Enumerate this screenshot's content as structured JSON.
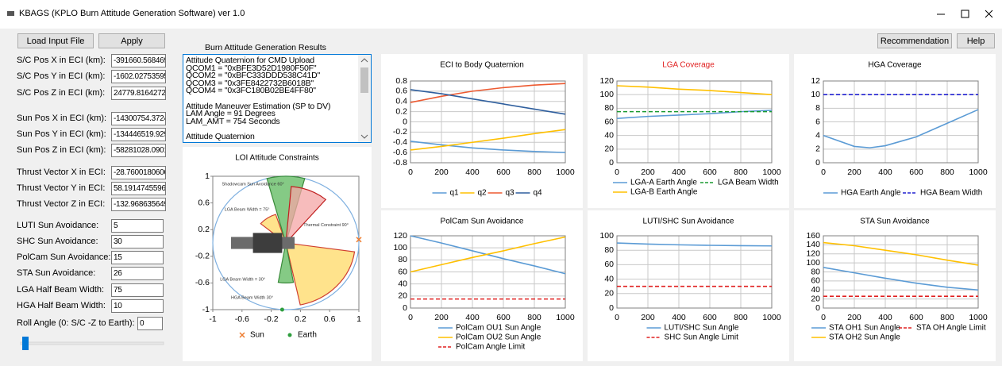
{
  "window_title": "KBAGS (KPLO Burn Attitude Generation Software) ver 1.0",
  "buttons": [
    "Load Input File",
    "Apply",
    "Recommendation",
    "Help"
  ],
  "fields": [
    {
      "label": "S/C Pos X in ECI (km):",
      "value": "-391660.568469"
    },
    {
      "label": "S/C Pos Y in ECI (km):",
      "value": "-1602.02753595"
    },
    {
      "label": "S/C Pos Z in ECI (km):",
      "value": "24779.81642721"
    },
    {
      "label": "Sun Pos X in ECI (km):",
      "value": "-14300754.3724"
    },
    {
      "label": "Sun Pos Y in ECI (km):",
      "value": "-134446519.929"
    },
    {
      "label": "Sun Pos Z in ECI (km):",
      "value": "-58281028.0901"
    },
    {
      "label": "Thrust Vector X in ECI:",
      "value": "-28.7600180606"
    },
    {
      "label": "Thrust Vector Y in ECI:",
      "value": "58.19147455960"
    },
    {
      "label": "Thrust Vector Z in ECI:",
      "value": "-132.968635649"
    },
    {
      "label": "LUTI Sun Avoidance:",
      "value": "5"
    },
    {
      "label": "SHC Sun Avoidance:",
      "value": "30"
    },
    {
      "label": "PolCam Sun Avoidance:",
      "value": "15"
    },
    {
      "label": "STA Sun Avoidance:",
      "value": "26"
    },
    {
      "label": "LGA Half Beam Width:",
      "value": "75"
    },
    {
      "label": "HGA Half Beam Width:",
      "value": "10"
    },
    {
      "label": "Roll Angle (0: S/C -Z to Earth):",
      "value": "0"
    }
  ],
  "results_title": "Burn Attitude Generation Results",
  "results": [
    [
      "Attitude Quaternion for CMD Upload",
      "QCOM1 = \"0xBFE3D52D1980F50F\"",
      "QCOM2 = \"0xBFC333DDD538C41D\"",
      "QCOM3 = \"0x3FE8422732B6018B\"",
      "QCOM4 = \"0x3FC180B02BE4FF80\""
    ],
    [
      "Attitude Maneuver Estimation (SP to DV)",
      "LAM Angle = 91 Degrees",
      "LAM_AMT = 754 Seconds"
    ],
    [
      "Attitude Quaternion"
    ]
  ],
  "chart_data": [
    {
      "type": "scatter",
      "title": "LOI Attitude Constraints",
      "xlim": [
        -1,
        1
      ],
      "ylim": [
        -1,
        1
      ],
      "xticks": [
        -1,
        -0.6,
        -0.2,
        0.2,
        0.6,
        1
      ],
      "yticks": [
        1,
        0.6,
        0.2,
        -0.2,
        -0.6,
        -1
      ],
      "grid": false,
      "series": [
        {
          "name": "Sun",
          "color": "#ed7d31",
          "x": [
            1
          ],
          "values": [
            0.05
          ]
        },
        {
          "name": "Earth",
          "color": "#2e9e3e",
          "x": [
            -0.05
          ],
          "values": [
            -1
          ]
        }
      ],
      "annotations": [
        "Shadowcam Sun Avoidance 60°",
        "LGA Beam Width = 75°",
        "Thermal Constraint 90°",
        "LGA Beam Width = 30°",
        "HGA Beam Width 30°"
      ]
    },
    {
      "type": "line",
      "title": "ECI to Body Quaternion",
      "x": [
        0,
        200,
        400,
        600,
        800,
        1000
      ],
      "xlim": [
        0,
        1000
      ],
      "ylim": [
        -0.8,
        0.8
      ],
      "xticks": [
        0,
        200,
        400,
        600,
        800,
        1000
      ],
      "yticks": [
        0.8,
        0.6,
        0.4,
        0.2,
        0,
        -0.2,
        -0.4,
        -0.6,
        -0.8
      ],
      "grid": true,
      "series": [
        {
          "name": "q1",
          "color": "#5b9bd5",
          "values": [
            -0.38,
            -0.45,
            -0.51,
            -0.55,
            -0.58,
            -0.6
          ]
        },
        {
          "name": "q2",
          "color": "#ffc000",
          "values": [
            -0.55,
            -0.48,
            -0.4,
            -0.32,
            -0.23,
            -0.15
          ]
        },
        {
          "name": "q3",
          "color": "#ed5a31",
          "values": [
            0.38,
            0.5,
            0.6,
            0.67,
            0.72,
            0.75
          ]
        },
        {
          "name": "q4",
          "color": "#2f5f9e",
          "values": [
            0.63,
            0.55,
            0.45,
            0.35,
            0.25,
            0.15
          ]
        }
      ]
    },
    {
      "type": "line",
      "title": "LGA Coverage",
      "title_color": "#e02020",
      "x": [
        0,
        200,
        400,
        600,
        800,
        1000
      ],
      "xlim": [
        0,
        1000
      ],
      "ylim": [
        0,
        120
      ],
      "xticks": [
        0,
        200,
        400,
        600,
        800,
        1000
      ],
      "yticks": [
        0,
        20,
        40,
        60,
        80,
        100,
        120
      ],
      "grid": true,
      "series": [
        {
          "name": "LGA-A Earth Angle",
          "color": "#5b9bd5",
          "values": [
            65,
            68,
            70,
            72,
            75,
            77
          ]
        },
        {
          "name": "LGA Beam Width",
          "color": "#1a9a30",
          "dashed": true,
          "values": [
            75,
            75,
            75,
            75,
            75,
            75
          ]
        },
        {
          "name": "LGA-B Earth Angle",
          "color": "#ffc000",
          "values": [
            113,
            111,
            108,
            106,
            103,
            100
          ]
        }
      ]
    },
    {
      "type": "line",
      "title": "HGA Coverage",
      "x": [
        0,
        200,
        300,
        400,
        600,
        800,
        1000
      ],
      "xlim": [
        0,
        1000
      ],
      "ylim": [
        0,
        12
      ],
      "xticks": [
        0,
        200,
        400,
        600,
        800,
        1000
      ],
      "yticks": [
        0,
        2,
        4,
        6,
        8,
        10,
        12
      ],
      "grid": true,
      "series": [
        {
          "name": "HGA Earth Angle",
          "color": "#5b9bd5",
          "values": [
            4,
            2.4,
            2.2,
            2.5,
            3.8,
            5.8,
            7.8
          ]
        },
        {
          "name": "HGA Beam Width",
          "color": "#2020d0",
          "dashed": true,
          "values": [
            10,
            10,
            10,
            10,
            10,
            10,
            10
          ]
        }
      ]
    },
    {
      "type": "line",
      "title": "PolCam Sun Avoidance",
      "x": [
        0,
        200,
        400,
        600,
        800,
        1000
      ],
      "xlim": [
        0,
        1000
      ],
      "ylim": [
        0,
        120
      ],
      "xticks": [
        0,
        200,
        400,
        600,
        800,
        1000
      ],
      "yticks": [
        0,
        20,
        40,
        60,
        80,
        100,
        120
      ],
      "grid": true,
      "series": [
        {
          "name": "PolCam OU1 Sun Angle",
          "color": "#5b9bd5",
          "values": [
            120,
            108,
            95,
            82,
            70,
            57
          ]
        },
        {
          "name": "PolCam OU2 Sun Angle",
          "color": "#ffc000",
          "values": [
            60,
            72,
            84,
            95,
            107,
            118
          ]
        },
        {
          "name": "PolCam Angle Limit",
          "color": "#e02020",
          "dashed": true,
          "values": [
            15,
            15,
            15,
            15,
            15,
            15
          ]
        }
      ]
    },
    {
      "type": "line",
      "title": "LUTI/SHC Sun Avoidance",
      "x": [
        0,
        200,
        400,
        600,
        800,
        1000
      ],
      "xlim": [
        0,
        1000
      ],
      "ylim": [
        0,
        100
      ],
      "xticks": [
        0,
        200,
        400,
        600,
        800,
        1000
      ],
      "yticks": [
        0,
        20,
        40,
        60,
        80,
        100
      ],
      "grid": true,
      "series": [
        {
          "name": "LUTI/SHC Sun Angle",
          "color": "#5b9bd5",
          "values": [
            90,
            88.5,
            87.5,
            86.8,
            86.3,
            86
          ]
        },
        {
          "name": "SHC Sun Angle Limit",
          "color": "#e02020",
          "dashed": true,
          "values": [
            30,
            30,
            30,
            30,
            30,
            30
          ]
        }
      ]
    },
    {
      "type": "line",
      "title": "STA Sun Avoidance",
      "x": [
        0,
        200,
        400,
        600,
        800,
        1000
      ],
      "xlim": [
        0,
        1000
      ],
      "ylim": [
        0,
        160
      ],
      "xticks": [
        0,
        200,
        400,
        600,
        800,
        1000
      ],
      "yticks": [
        0,
        20,
        40,
        60,
        80,
        100,
        120,
        140,
        160
      ],
      "grid": true,
      "series": [
        {
          "name": "STA OH1 Sun Angle",
          "color": "#5b9bd5",
          "values": [
            90,
            78,
            66,
            55,
            46,
            40
          ]
        },
        {
          "name": "STA OH Angle Limit",
          "color": "#e02020",
          "dashed": true,
          "values": [
            26,
            26,
            26,
            26,
            26,
            26
          ]
        },
        {
          "name": "STA OH2 Sun Angle",
          "color": "#ffc000",
          "values": [
            145,
            138,
            128,
            118,
            106,
            95
          ]
        }
      ]
    }
  ]
}
